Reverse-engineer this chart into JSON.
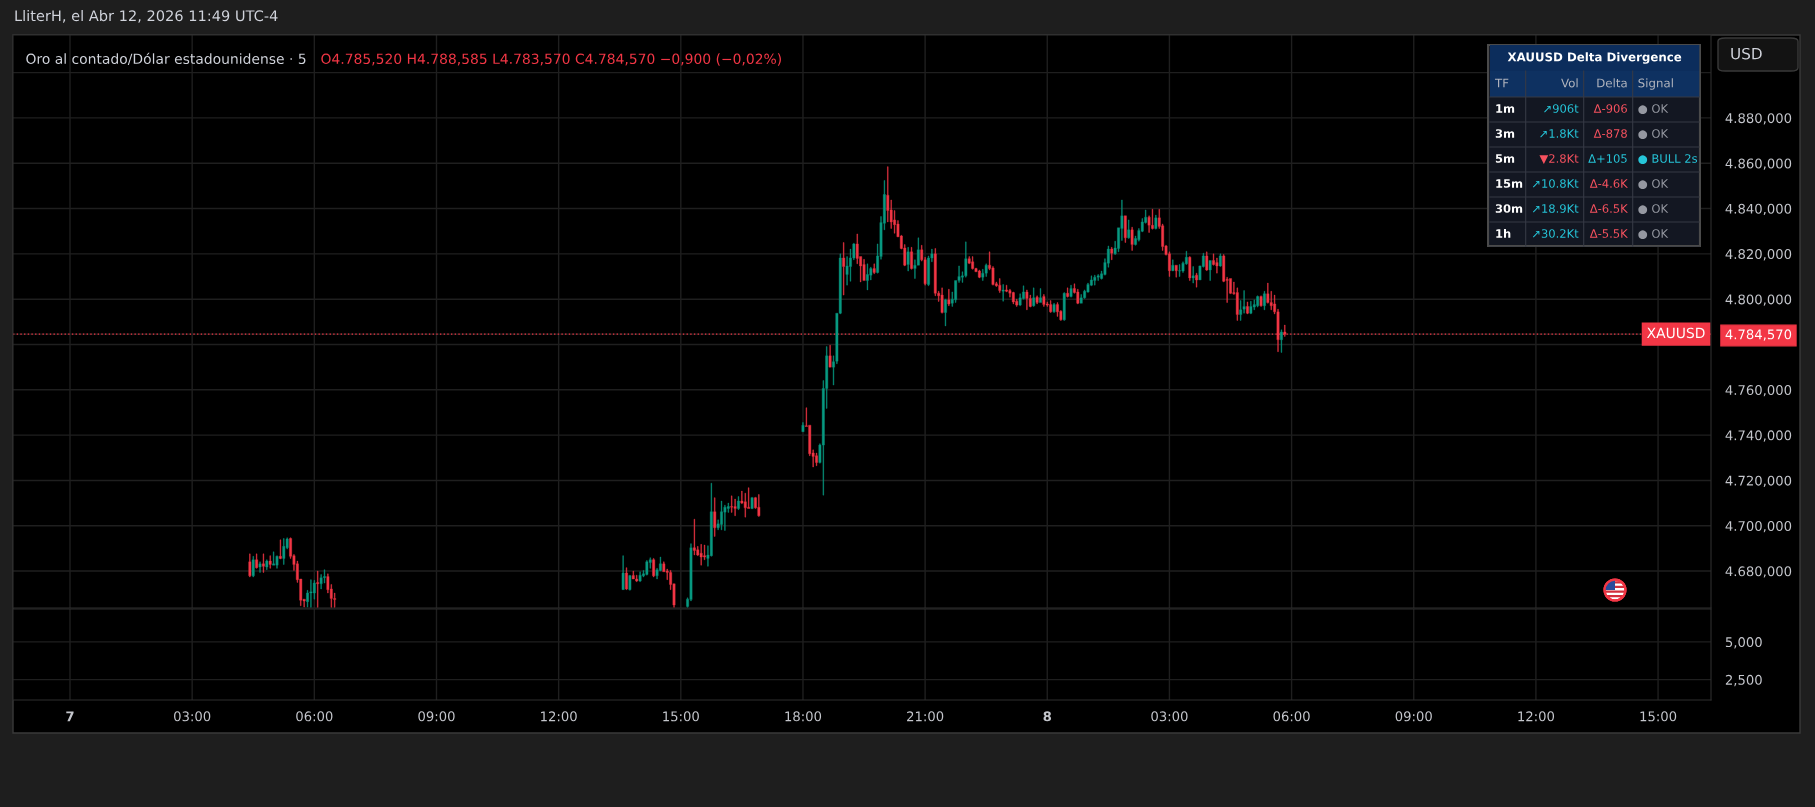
{
  "chart_data": [
    {
      "type": "candlestick",
      "title": "Oro al contado/Dólar estadounidense · 5",
      "subtitle": "O4.785,520 H4.788,585 L4.783,570 C4.784,570 −0,900 (−0,02%)",
      "ylabel": "USD",
      "annotations": [
        "LliterH, el Abr 12, 2026 11:49 UTC-4"
      ],
      "xlim": [
        "2026-04-06T22:36",
        "2026-04-08T16:18"
      ],
      "xticks": [
        "2026-04-07T00:00",
        "2026-04-07T03:00",
        "2026-04-07T06:00",
        "2026-04-07T09:00",
        "2026-04-07T12:00",
        "2026-04-07T15:00",
        "2026-04-07T18:00",
        "2026-04-07T21:00",
        "2026-04-08T00:00",
        "2026-04-08T03:00",
        "2026-04-08T06:00",
        "2026-04-08T09:00",
        "2026-04-08T12:00",
        "2026-04-08T15:00"
      ],
      "ylim": [
        4663.7,
        4916.6
      ],
      "yticks": [
        {
          "value": 4680,
          "label": "4.680,000"
        },
        {
          "value": 4700,
          "label": "4.700,000"
        },
        {
          "value": 4720,
          "label": "4.720,000"
        },
        {
          "value": 4740,
          "label": "4.740,000"
        },
        {
          "value": 4760,
          "label": "4.760,000"
        },
        {
          "value": 4780,
          "label": null
        },
        {
          "value": 4784.57,
          "label": "4.784,570"
        },
        {
          "value": 4800,
          "label": "4.800,000"
        },
        {
          "value": 4820,
          "label": "4.820,000"
        },
        {
          "value": 4840,
          "label": "4.840,000"
        },
        {
          "value": 4860,
          "label": "4.860,000"
        },
        {
          "value": 4880,
          "label": "4.880,000"
        },
        {
          "value": 4900,
          "label": null
        }
      ],
      "grid": true,
      "tick_labels": "y",
      "ref_lines": [
        {
          "axis": "y",
          "value": 4784.57,
          "label": "XAUUSD",
          "color": "#f23645",
          "line_style": "dotted"
        }
      ],
      "x": [
        "2026-04-07T04:25",
        "2026-04-07T04:30",
        "2026-04-07T04:35",
        "2026-04-07T04:40",
        "2026-04-07T04:45",
        "2026-04-07T04:50",
        "2026-04-07T04:55",
        "2026-04-07T05:00",
        "2026-04-07T05:05",
        "2026-04-07T05:10",
        "2026-04-07T05:15",
        "2026-04-07T05:20",
        "2026-04-07T05:25",
        "2026-04-07T05:30",
        "2026-04-07T05:35",
        "2026-04-07T05:40",
        "2026-04-07T05:45",
        "2026-04-07T05:50",
        "2026-04-07T05:55",
        "2026-04-07T06:00",
        "2026-04-07T06:05",
        "2026-04-07T06:10",
        "2026-04-07T06:15",
        "2026-04-07T06:20",
        "2026-04-07T06:25",
        "2026-04-07T06:30",
        "2026-04-07T13:35",
        "2026-04-07T13:40",
        "2026-04-07T13:45",
        "2026-04-07T13:50",
        "2026-04-07T13:55",
        "2026-04-07T14:00",
        "2026-04-07T14:05",
        "2026-04-07T14:10",
        "2026-04-07T14:15",
        "2026-04-07T14:20",
        "2026-04-07T14:25",
        "2026-04-07T14:30",
        "2026-04-07T14:35",
        "2026-04-07T14:40",
        "2026-04-07T14:45",
        "2026-04-07T14:50",
        "2026-04-07T15:10",
        "2026-04-07T15:15",
        "2026-04-07T15:20",
        "2026-04-07T15:25",
        "2026-04-07T15:30",
        "2026-04-07T15:35",
        "2026-04-07T15:40",
        "2026-04-07T15:45",
        "2026-04-07T15:50",
        "2026-04-07T15:55",
        "2026-04-07T16:00",
        "2026-04-07T16:05",
        "2026-04-07T16:10",
        "2026-04-07T16:15",
        "2026-04-07T16:20",
        "2026-04-07T16:25",
        "2026-04-07T16:30",
        "2026-04-07T16:35",
        "2026-04-07T16:40",
        "2026-04-07T16:45",
        "2026-04-07T16:50",
        "2026-04-07T16:55",
        "2026-04-07T18:00",
        "2026-04-07T18:05",
        "2026-04-07T18:10",
        "2026-04-07T18:15",
        "2026-04-07T18:20",
        "2026-04-07T18:25",
        "2026-04-07T18:30",
        "2026-04-07T18:35",
        "2026-04-07T18:40",
        "2026-04-07T18:45",
        "2026-04-07T18:50",
        "2026-04-07T18:55",
        "2026-04-07T19:00",
        "2026-04-07T19:05",
        "2026-04-07T19:10",
        "2026-04-07T19:15",
        "2026-04-07T19:20",
        "2026-04-07T19:25",
        "2026-04-07T19:30",
        "2026-04-07T19:35",
        "2026-04-07T19:40",
        "2026-04-07T19:45",
        "2026-04-07T19:50",
        "2026-04-07T19:55",
        "2026-04-07T20:00",
        "2026-04-07T20:05",
        "2026-04-07T20:10",
        "2026-04-07T20:15",
        "2026-04-07T20:20",
        "2026-04-07T20:25",
        "2026-04-07T20:30",
        "2026-04-07T20:35",
        "2026-04-07T20:40",
        "2026-04-07T20:45",
        "2026-04-07T20:50",
        "2026-04-07T20:55",
        "2026-04-07T21:00",
        "2026-04-07T21:05",
        "2026-04-07T21:10",
        "2026-04-07T21:15",
        "2026-04-07T21:20",
        "2026-04-07T21:25",
        "2026-04-07T21:30",
        "2026-04-07T21:35",
        "2026-04-07T21:40",
        "2026-04-07T21:45",
        "2026-04-07T21:50",
        "2026-04-07T21:55",
        "2026-04-07T22:00",
        "2026-04-07T22:05",
        "2026-04-07T22:10",
        "2026-04-07T22:15",
        "2026-04-07T22:20",
        "2026-04-07T22:25",
        "2026-04-07T22:30",
        "2026-04-07T22:35",
        "2026-04-07T22:40",
        "2026-04-07T22:45",
        "2026-04-07T22:50",
        "2026-04-07T22:55",
        "2026-04-07T23:00",
        "2026-04-07T23:05",
        "2026-04-07T23:10",
        "2026-04-07T23:15",
        "2026-04-07T23:20",
        "2026-04-07T23:25",
        "2026-04-07T23:30",
        "2026-04-07T23:35",
        "2026-04-07T23:40",
        "2026-04-07T23:45",
        "2026-04-07T23:50",
        "2026-04-07T23:55",
        "2026-04-08T00:00",
        "2026-04-08T00:05",
        "2026-04-08T00:10",
        "2026-04-08T00:15",
        "2026-04-08T00:20",
        "2026-04-08T00:25",
        "2026-04-08T00:30",
        "2026-04-08T00:35",
        "2026-04-08T00:40",
        "2026-04-08T00:45",
        "2026-04-08T00:50",
        "2026-04-08T00:55",
        "2026-04-08T01:00",
        "2026-04-08T01:05",
        "2026-04-08T01:10",
        "2026-04-08T01:15",
        "2026-04-08T01:20",
        "2026-04-08T01:25",
        "2026-04-08T01:30",
        "2026-04-08T01:35",
        "2026-04-08T01:40",
        "2026-04-08T01:45",
        "2026-04-08T01:50",
        "2026-04-08T01:55",
        "2026-04-08T02:00",
        "2026-04-08T02:05",
        "2026-04-08T02:10",
        "2026-04-08T02:15",
        "2026-04-08T02:20",
        "2026-04-08T02:25",
        "2026-04-08T02:30",
        "2026-04-08T02:35",
        "2026-04-08T02:40",
        "2026-04-08T02:45",
        "2026-04-08T02:50",
        "2026-04-08T02:55",
        "2026-04-08T03:00",
        "2026-04-08T03:05",
        "2026-04-08T03:10",
        "2026-04-08T03:15",
        "2026-04-08T03:20",
        "2026-04-08T03:25",
        "2026-04-08T03:30",
        "2026-04-08T03:35",
        "2026-04-08T03:40",
        "2026-04-08T03:45",
        "2026-04-08T03:50",
        "2026-04-08T03:55",
        "2026-04-08T04:00",
        "2026-04-08T04:05",
        "2026-04-08T04:10",
        "2026-04-08T04:15",
        "2026-04-08T04:20",
        "2026-04-08T04:25",
        "2026-04-08T04:30",
        "2026-04-08T04:35",
        "2026-04-08T04:40",
        "2026-04-08T04:45",
        "2026-04-08T04:50",
        "2026-04-08T04:55",
        "2026-04-08T05:00",
        "2026-04-08T05:05",
        "2026-04-08T05:10",
        "2026-04-08T05:15",
        "2026-04-08T05:20",
        "2026-04-08T05:25",
        "2026-04-08T05:30",
        "2026-04-08T05:35",
        "2026-04-08T05:40",
        "2026-04-08T05:45",
        "2026-04-08T05:50"
      ],
      "ohlc": [
        [
          4684.1,
          4687.6,
          4677.4,
          4677.9
        ],
        [
          4677.9,
          4686.5,
          4677.4,
          4685.0
        ],
        [
          4685.0,
          4687.6,
          4681.2,
          4681.5
        ],
        [
          4681.8,
          4684.1,
          4679.4,
          4683.2
        ],
        [
          4683.2,
          4687.6,
          4679.4,
          4682.1
        ],
        [
          4681.8,
          4685.0,
          4680.6,
          4684.4
        ],
        [
          4684.4,
          4686.8,
          4681.2,
          4682.9
        ],
        [
          4682.6,
          4688.5,
          4682.6,
          4683.2
        ],
        [
          4682.6,
          4686.8,
          4681.2,
          4686.5
        ],
        [
          4686.5,
          4693.8,
          4685.3,
          4685.6
        ],
        [
          4685.6,
          4694.4,
          4682.9,
          4690.9
        ],
        [
          4690.3,
          4694.7,
          4689.7,
          4694.1
        ],
        [
          4694.4,
          4694.7,
          4685.6,
          4686.5
        ],
        [
          4686.8,
          4687.3,
          4680.3,
          4682.9
        ],
        [
          4683.2,
          4684.4,
          4675.0,
          4676.2
        ],
        [
          4676.5,
          4676.5,
          4664.7,
          4667.1
        ],
        [
          4667.6,
          4667.6,
          4664.1,
          4666.8
        ],
        [
          4666.5,
          4671.5,
          4664.1,
          4670.3
        ],
        [
          4670.3,
          4676.2,
          4664.0,
          4670.9
        ],
        [
          4670.3,
          4675.9,
          4667.6,
          4674.7
        ],
        [
          4675.0,
          4680.0,
          4664.0,
          4674.4
        ],
        [
          4674.4,
          4678.5,
          4672.1,
          4677.1
        ],
        [
          4677.1,
          4680.6,
          4674.7,
          4677.6
        ],
        [
          4677.6,
          4678.8,
          4670.3,
          4671.8
        ],
        [
          4672.1,
          4674.1,
          4664.0,
          4667.9
        ],
        [
          4667.9,
          4670.3,
          4664.0,
          4667.4
        ],
        [
          4671.8,
          4686.8,
          4671.8,
          4679.1
        ],
        [
          4679.1,
          4681.5,
          4671.8,
          4672.1
        ],
        [
          4671.8,
          4678.2,
          4671.5,
          4678.0
        ],
        [
          4678.0,
          4680.0,
          4676.5,
          4676.5
        ],
        [
          4676.5,
          4678.2,
          4675.3,
          4675.6
        ],
        [
          4675.6,
          4679.7,
          4675.3,
          4678.2
        ],
        [
          4677.9,
          4680.3,
          4677.4,
          4678.8
        ],
        [
          4678.5,
          4684.7,
          4678.2,
          4684.1
        ],
        [
          4683.8,
          4685.9,
          4681.2,
          4685.0
        ],
        [
          4685.0,
          4685.6,
          4677.4,
          4677.9
        ],
        [
          4677.9,
          4681.2,
          4676.5,
          4680.6
        ],
        [
          4680.3,
          4686.2,
          4680.0,
          4683.2
        ],
        [
          4683.2,
          4684.1,
          4679.7,
          4679.7
        ],
        [
          4680.0,
          4680.9,
          4676.2,
          4679.4
        ],
        [
          4679.4,
          4680.3,
          4671.8,
          4674.1
        ],
        [
          4674.4,
          4674.4,
          4664.0,
          4665.0
        ],
        [
          4664.4,
          4668.2,
          4664.0,
          4667.6
        ],
        [
          4667.4,
          4692.1,
          4666.8,
          4690.3
        ],
        [
          4690.3,
          4702.9,
          4687.1,
          4689.1
        ],
        [
          4689.4,
          4690.9,
          4686.8,
          4687.1
        ],
        [
          4687.9,
          4691.8,
          4682.6,
          4686.2
        ],
        [
          4686.8,
          4691.5,
          4685.0,
          4686.2
        ],
        [
          4685.6,
          4691.2,
          4682.1,
          4687.1
        ],
        [
          4686.8,
          4718.8,
          4686.5,
          4706.2
        ],
        [
          4706.2,
          4712.4,
          4695.3,
          4699.1
        ],
        [
          4699.1,
          4702.6,
          4698.2,
          4700.9
        ],
        [
          4700.6,
          4710.9,
          4698.2,
          4706.2
        ],
        [
          4706.0,
          4709.1,
          4697.9,
          4708.2
        ],
        [
          4707.6,
          4710.0,
          4705.9,
          4708.5
        ],
        [
          4708.5,
          4713.2,
          4705.9,
          4708.2
        ],
        [
          4708.5,
          4711.8,
          4704.4,
          4707.6
        ],
        [
          4707.6,
          4712.9,
          4707.1,
          4710.9
        ],
        [
          4710.9,
          4715.3,
          4709.7,
          4710.0
        ],
        [
          4710.6,
          4714.4,
          4703.8,
          4707.9
        ],
        [
          4708.2,
          4716.8,
          4707.6,
          4707.6
        ],
        [
          4707.6,
          4712.6,
          4707.4,
          4712.4
        ],
        [
          4712.4,
          4712.6,
          4707.6,
          4707.9
        ],
        [
          4708.2,
          4713.8,
          4704.1,
          4704.4
        ],
        [
          4741.5,
          4745.6,
          4741.5,
          4744.4
        ],
        [
          4744.1,
          4752.1,
          4743.8,
          4743.8
        ],
        [
          4744.4,
          4744.4,
          4730.9,
          4731.8
        ],
        [
          4732.1,
          4733.5,
          4725.9,
          4730.6
        ],
        [
          4730.9,
          4732.1,
          4726.5,
          4727.9
        ],
        [
          4727.9,
          4736.2,
          4727.6,
          4735.6
        ],
        [
          4735.6,
          4764.1,
          4713.5,
          4760.6
        ],
        [
          4760.6,
          4779.1,
          4751.8,
          4775.0
        ],
        [
          4775.0,
          4779.7,
          4770.0,
          4770.0
        ],
        [
          4770.0,
          4775.0,
          4762.1,
          4772.4
        ],
        [
          4772.6,
          4793.8,
          4771.5,
          4793.8
        ],
        [
          4793.8,
          4820.0,
          4793.5,
          4818.2
        ],
        [
          4818.2,
          4825.0,
          4801.8,
          4814.4
        ],
        [
          4810.9,
          4818.8,
          4806.2,
          4814.7
        ],
        [
          4814.4,
          4822.1,
          4807.9,
          4818.2
        ],
        [
          4818.2,
          4824.7,
          4817.4,
          4824.4
        ],
        [
          4824.4,
          4828.8,
          4815.6,
          4818.0
        ],
        [
          4818.8,
          4818.8,
          4807.6,
          4814.7
        ],
        [
          4815.3,
          4817.6,
          4808.2,
          4808.2
        ],
        [
          4808.2,
          4815.6,
          4804.1,
          4810.9
        ],
        [
          4810.6,
          4814.1,
          4808.5,
          4813.5
        ],
        [
          4813.5,
          4815.6,
          4811.2,
          4811.8
        ],
        [
          4811.8,
          4824.4,
          4811.5,
          4819.1
        ],
        [
          4818.8,
          4836.5,
          4817.6,
          4833.8
        ],
        [
          4833.5,
          4852.4,
          4830.6,
          4846.2
        ],
        [
          4845.9,
          4858.5,
          4834.1,
          4839.1
        ],
        [
          4839.4,
          4843.8,
          4831.2,
          4834.1
        ],
        [
          4835.0,
          4839.1,
          4829.1,
          4832.9
        ],
        [
          4833.2,
          4834.7,
          4827.4,
          4827.6
        ],
        [
          4827.9,
          4828.2,
          4822.1,
          4822.4
        ],
        [
          4822.6,
          4824.1,
          4814.7,
          4815.0
        ],
        [
          4815.3,
          4822.9,
          4812.4,
          4820.9
        ],
        [
          4820.9,
          4822.9,
          4813.2,
          4813.5
        ],
        [
          4813.5,
          4817.4,
          4809.1,
          4815.0
        ],
        [
          4815.0,
          4827.1,
          4815.0,
          4821.8
        ],
        [
          4821.8,
          4823.8,
          4816.8,
          4817.4
        ],
        [
          4817.4,
          4818.5,
          4806.2,
          4806.8
        ],
        [
          4806.5,
          4819.1,
          4805.9,
          4818.2
        ],
        [
          4818.2,
          4822.1,
          4816.5,
          4820.0
        ],
        [
          4820.0,
          4822.4,
          4801.5,
          4802.6
        ],
        [
          4802.6,
          4803.5,
          4799.0,
          4801.5
        ],
        [
          4801.8,
          4805.0,
          4793.8,
          4794.1
        ],
        [
          4794.1,
          4800.0,
          4788.2,
          4799.7
        ],
        [
          4799.7,
          4804.4,
          4797.1,
          4797.9
        ],
        [
          4798.2,
          4803.2,
          4796.8,
          4800.0
        ],
        [
          4799.7,
          4808.2,
          4798.5,
          4808.2
        ],
        [
          4808.2,
          4814.7,
          4807.4,
          4810.0
        ],
        [
          4809.7,
          4812.1,
          4807.4,
          4810.3
        ],
        [
          4810.3,
          4825.3,
          4809.7,
          4817.9
        ],
        [
          4817.9,
          4818.8,
          4815.6,
          4815.9
        ],
        [
          4816.5,
          4818.8,
          4813.2,
          4813.5
        ],
        [
          4813.5,
          4813.8,
          4812.1,
          4812.1
        ],
        [
          4812.4,
          4812.9,
          4809.4,
          4809.7
        ],
        [
          4809.7,
          4813.2,
          4808.2,
          4811.5
        ],
        [
          4811.5,
          4815.6,
          4810.0,
          4815.0
        ],
        [
          4815.0,
          4820.9,
          4812.9,
          4813.5
        ],
        [
          4813.8,
          4814.4,
          4806.2,
          4806.5
        ],
        [
          4806.8,
          4807.6,
          4805.6,
          4805.9
        ],
        [
          4806.2,
          4809.1,
          4802.9,
          4803.8
        ],
        [
          4803.5,
          4806.5,
          4799.1,
          4804.1
        ],
        [
          4804.1,
          4806.2,
          4803.2,
          4803.5
        ],
        [
          4803.8,
          4804.4,
          4800.9,
          4802.6
        ],
        [
          4802.9,
          4803.2,
          4797.9,
          4798.8
        ],
        [
          4799.1,
          4800.0,
          4796.8,
          4797.4
        ],
        [
          4797.4,
          4802.4,
          4797.1,
          4800.6
        ],
        [
          4800.3,
          4805.9,
          4800.0,
          4803.2
        ],
        [
          4803.2,
          4804.1,
          4795.3,
          4800.3
        ],
        [
          4800.3,
          4801.8,
          4796.5,
          4796.8
        ],
        [
          4797.1,
          4805.0,
          4796.8,
          4800.6
        ],
        [
          4800.9,
          4801.5,
          4797.9,
          4798.5
        ],
        [
          4798.5,
          4804.7,
          4798.5,
          4800.6
        ],
        [
          4801.2,
          4802.1,
          4796.8,
          4797.6
        ],
        [
          4797.9,
          4798.8,
          4796.8,
          4797.4
        ],
        [
          4797.6,
          4799.4,
          4794.1,
          4794.4
        ],
        [
          4794.4,
          4798.2,
          4794.1,
          4797.6
        ],
        [
          4797.6,
          4798.5,
          4792.4,
          4794.4
        ],
        [
          4794.7,
          4795.0,
          4790.6,
          4790.9
        ],
        [
          4790.9,
          4802.9,
          4790.6,
          4802.6
        ],
        [
          4802.6,
          4805.0,
          4800.9,
          4801.2
        ],
        [
          4801.2,
          4806.2,
          4800.9,
          4804.7
        ],
        [
          4804.7,
          4806.8,
          4802.6,
          4802.9
        ],
        [
          4803.2,
          4804.4,
          4797.9,
          4798.2
        ],
        [
          4798.2,
          4802.1,
          4798.2,
          4800.6
        ],
        [
          4800.6,
          4804.1,
          4800.3,
          4803.5
        ],
        [
          4803.2,
          4807.1,
          4803.0,
          4806.5
        ],
        [
          4806.2,
          4810.3,
          4805.9,
          4808.5
        ],
        [
          4808.2,
          4810.6,
          4806.2,
          4809.7
        ],
        [
          4809.7,
          4810.9,
          4808.2,
          4810.3
        ],
        [
          4809.1,
          4812.4,
          4808.8,
          4811.2
        ],
        [
          4810.9,
          4817.9,
          4810.6,
          4816.2
        ],
        [
          4815.9,
          4823.5,
          4814.1,
          4822.1
        ],
        [
          4822.1,
          4822.9,
          4817.4,
          4820.3
        ],
        [
          4820.0,
          4825.6,
          4819.7,
          4822.6
        ],
        [
          4822.4,
          4831.5,
          4820.9,
          4831.5
        ],
        [
          4831.2,
          4843.8,
          4825.9,
          4836.8
        ],
        [
          4836.8,
          4836.8,
          4825.0,
          4827.1
        ],
        [
          4827.1,
          4835.0,
          4826.8,
          4830.6
        ],
        [
          4830.6,
          4831.8,
          4821.5,
          4824.1
        ],
        [
          4824.1,
          4827.9,
          4823.8,
          4826.8
        ],
        [
          4826.2,
          4831.2,
          4825.6,
          4830.3
        ],
        [
          4830.0,
          4835.6,
          4829.7,
          4834.1
        ],
        [
          4833.8,
          4839.4,
          4833.5,
          4836.2
        ],
        [
          4836.2,
          4836.8,
          4829.4,
          4832.6
        ],
        [
          4832.6,
          4839.7,
          4830.9,
          4831.2
        ],
        [
          4831.2,
          4837.1,
          4830.9,
          4835.9
        ],
        [
          4835.9,
          4839.7,
          4831.2,
          4832.1
        ],
        [
          4832.4,
          4833.2,
          4821.5,
          4823.2
        ],
        [
          4823.5,
          4823.8,
          4819.4,
          4819.7
        ],
        [
          4820.0,
          4820.9,
          4810.0,
          4812.6
        ],
        [
          4812.6,
          4817.4,
          4812.4,
          4815.0
        ],
        [
          4815.0,
          4815.0,
          4809.7,
          4812.6
        ],
        [
          4812.4,
          4815.3,
          4810.0,
          4812.6
        ],
        [
          4812.4,
          4816.5,
          4811.8,
          4815.9
        ],
        [
          4815.6,
          4821.2,
          4815.3,
          4818.5
        ],
        [
          4818.5,
          4818.8,
          4808.2,
          4809.4
        ],
        [
          4809.4,
          4814.4,
          4807.1,
          4810.3
        ],
        [
          4810.6,
          4811.5,
          4805.3,
          4808.5
        ],
        [
          4808.5,
          4814.7,
          4808.5,
          4814.7
        ],
        [
          4814.4,
          4820.3,
          4814.1,
          4819.1
        ],
        [
          4819.1,
          4820.9,
          4812.6,
          4812.9
        ],
        [
          4812.9,
          4817.1,
          4808.2,
          4817.1
        ],
        [
          4817.1,
          4820.0,
          4815.0,
          4815.3
        ],
        [
          4816.2,
          4818.2,
          4811.5,
          4814.7
        ],
        [
          4814.7,
          4820.0,
          4814.4,
          4819.1
        ],
        [
          4819.1,
          4819.7,
          4807.6,
          4807.9
        ],
        [
          4808.8,
          4809.7,
          4798.5,
          4808.2
        ],
        [
          4809.1,
          4809.1,
          4802.4,
          4802.6
        ],
        [
          4802.9,
          4807.6,
          4802.1,
          4802.4
        ],
        [
          4802.9,
          4805.0,
          4790.6,
          4793.2
        ],
        [
          4793.2,
          4799.4,
          4790.6,
          4795.3
        ],
        [
          4795.6,
          4803.8,
          4793.8,
          4796.8
        ],
        [
          4796.8,
          4798.8,
          4793.5,
          4793.8
        ],
        [
          4793.8,
          4799.1,
          4793.5,
          4796.8
        ],
        [
          4796.5,
          4799.7,
          4795.3,
          4797.6
        ],
        [
          4797.1,
          4801.5,
          4796.5,
          4801.2
        ],
        [
          4801.2,
          4801.5,
          4796.8,
          4797.1
        ],
        [
          4797.1,
          4803.5,
          4795.3,
          4802.4
        ],
        [
          4802.4,
          4807.1,
          4798.2,
          4798.5
        ],
        [
          4798.5,
          4803.5,
          4795.3,
          4797.1
        ],
        [
          4797.9,
          4801.8,
          4793.5,
          4794.4
        ],
        [
          4794.4,
          4795.6,
          4776.8,
          4782.1
        ],
        [
          4782.1,
          4786.5,
          4776.5,
          4785.5
        ],
        [
          4785.52,
          4788.585,
          4783.57,
          4784.57
        ]
      ],
      "colors": [
        "#f23645",
        "#089981",
        "#f23645",
        "#089981",
        "#f23645",
        "#089981",
        "#f23645",
        "#089981",
        "#089981",
        "#f23645",
        "#089981",
        "#089981",
        "#f23645",
        "#f23645",
        "#f23645",
        "#f23645",
        "#f23645",
        "#089981",
        "#089981",
        "#089981",
        "#f23645",
        "#089981",
        "#089981",
        "#f23645",
        "#f23645",
        "#f23645",
        "#089981",
        "#f23645",
        "#089981",
        "#f23645",
        "#f23645",
        "#089981",
        "#089981",
        "#089981",
        "#089981",
        "#f23645",
        "#089981",
        "#089981",
        "#f23645",
        "#f23645",
        "#f23645",
        "#f23645",
        "#089981",
        "#089981",
        "#f23645",
        "#f23645",
        "#f23645",
        "#f23645",
        "#089981",
        "#089981",
        "#f23645",
        "#089981",
        "#089981",
        "#089981",
        "#089981",
        "#f23645",
        "#f23645",
        "#089981",
        "#f23645",
        "#f23645",
        "#f23645",
        "#089981",
        "#f23645",
        "#f23645",
        "#089981",
        "#f23645",
        "#f23645",
        "#f23645",
        "#f23645",
        "#089981",
        "#089981",
        "#089981",
        "#f23645",
        "#089981",
        "#089981",
        "#089981",
        "#f23645",
        "#089981",
        "#089981",
        "#089981",
        "#f23645",
        "#f23645",
        "#f23645",
        "#089981",
        "#089981",
        "#f23645",
        "#089981",
        "#089981",
        "#089981",
        "#f23645",
        "#f23645",
        "#f23645",
        "#f23645",
        "#f23645",
        "#f23645",
        "#089981",
        "#f23645",
        "#089981",
        "#089981",
        "#f23645",
        "#f23645",
        "#089981",
        "#089981",
        "#f23645",
        "#f23645",
        "#f23645",
        "#089981",
        "#f23645",
        "#089981",
        "#089981",
        "#089981",
        "#089981",
        "#089981",
        "#f23645",
        "#f23645",
        "#f23645",
        "#f23645",
        "#089981",
        "#089981",
        "#f23645",
        "#f23645",
        "#f23645",
        "#f23645",
        "#089981",
        "#f23645",
        "#f23645",
        "#f23645",
        "#f23645",
        "#089981",
        "#089981",
        "#f23645",
        "#f23645",
        "#089981",
        "#f23645",
        "#089981",
        "#f23645",
        "#f23645",
        "#f23645",
        "#089981",
        "#f23645",
        "#f23645",
        "#089981",
        "#f23645",
        "#089981",
        "#f23645",
        "#f23645",
        "#089981",
        "#089981",
        "#089981",
        "#089981",
        "#089981",
        "#089981",
        "#089981",
        "#089981",
        "#089981",
        "#f23645",
        "#089981",
        "#089981",
        "#089981",
        "#f23645",
        "#089981",
        "#f23645",
        "#089981",
        "#089981",
        "#089981",
        "#089981",
        "#f23645",
        "#f23645",
        "#089981",
        "#f23645",
        "#f23645",
        "#f23645",
        "#f23645",
        "#089981",
        "#f23645",
        "#089981",
        "#089981",
        "#089981",
        "#f23645",
        "#089981",
        "#f23645",
        "#089981",
        "#089981",
        "#f23645",
        "#089981",
        "#f23645",
        "#f23645",
        "#089981",
        "#f23645",
        "#f23645",
        "#f23645",
        "#f23645",
        "#f23645",
        "#089981",
        "#089981",
        "#f23645",
        "#089981",
        "#089981",
        "#089981",
        "#f23645",
        "#089981",
        "#f23645",
        "#f23645",
        "#f23645",
        "#f23645",
        "#089981",
        "#f23645"
      ]
    },
    {
      "type": "other",
      "title": "XAUUSD Delta Divergence",
      "categories": [
        "TF",
        "Vol",
        "Delta",
        "Signal"
      ],
      "annotations": [
        "1m",
        "↗906t",
        "Δ-906",
        "● OK",
        "3m",
        "↗1.8Kt",
        "Δ-878",
        "● OK",
        "5m",
        "▼2.8Kt",
        "Δ+105",
        "● BULL 2s",
        "15m",
        "↗10.8Kt",
        "Δ-4.6K",
        "● OK",
        "30m",
        "↗18.9Kt",
        "Δ-6.5K",
        "● OK",
        "1h",
        "↗30.2Kt",
        "Δ-5.5K",
        "● OK"
      ],
      "colors": [
        "#ffffff",
        "#26c6da",
        "#f7525f",
        "#9598a1",
        "#ffffff",
        "#26c6da",
        "#f7525f",
        "#9598a1",
        "#ffffff",
        "#f7525f",
        "#26c6da",
        "#26c6da",
        "#ffffff",
        "#26c6da",
        "#f7525f",
        "#9598a1",
        "#ffffff",
        "#26c6da",
        "#f7525f",
        "#9598a1",
        "#ffffff",
        "#26c6da",
        "#f7525f",
        "#9598a1"
      ]
    },
    {
      "type": "bar",
      "xlim": [
        "2026-04-06T22:36",
        "2026-04-08T16:18"
      ],
      "xticks": [
        {
          "value": "2026-04-07T00:00",
          "label": "7"
        },
        {
          "value": "2026-04-07T03:00",
          "label": "03:00"
        },
        {
          "value": "2026-04-07T06:00",
          "label": "06:00"
        },
        {
          "value": "2026-04-07T09:00",
          "label": "09:00"
        },
        {
          "value": "2026-04-07T12:00",
          "label": "12:00"
        },
        {
          "value": "2026-04-07T15:00",
          "label": "15:00"
        },
        {
          "value": "2026-04-07T18:00",
          "label": "18:00"
        },
        {
          "value": "2026-04-07T21:00",
          "label": "21:00"
        },
        {
          "value": "2026-04-08T00:00",
          "label": "8"
        },
        {
          "value": "2026-04-08T03:00",
          "label": "03:00"
        },
        {
          "value": "2026-04-08T06:00",
          "label": "06:00"
        },
        {
          "value": "2026-04-08T09:00",
          "label": "09:00"
        },
        {
          "value": "2026-04-08T12:00",
          "label": "12:00"
        },
        {
          "value": "2026-04-08T15:00",
          "label": "15:00"
        }
      ],
      "ylim": [
        1150,
        7180
      ],
      "yticks": [
        {
          "value": 5000,
          "label": "5,000"
        },
        {
          "value": 2500,
          "label": "2,500"
        }
      ],
      "grid": true
    }
  ]
}
